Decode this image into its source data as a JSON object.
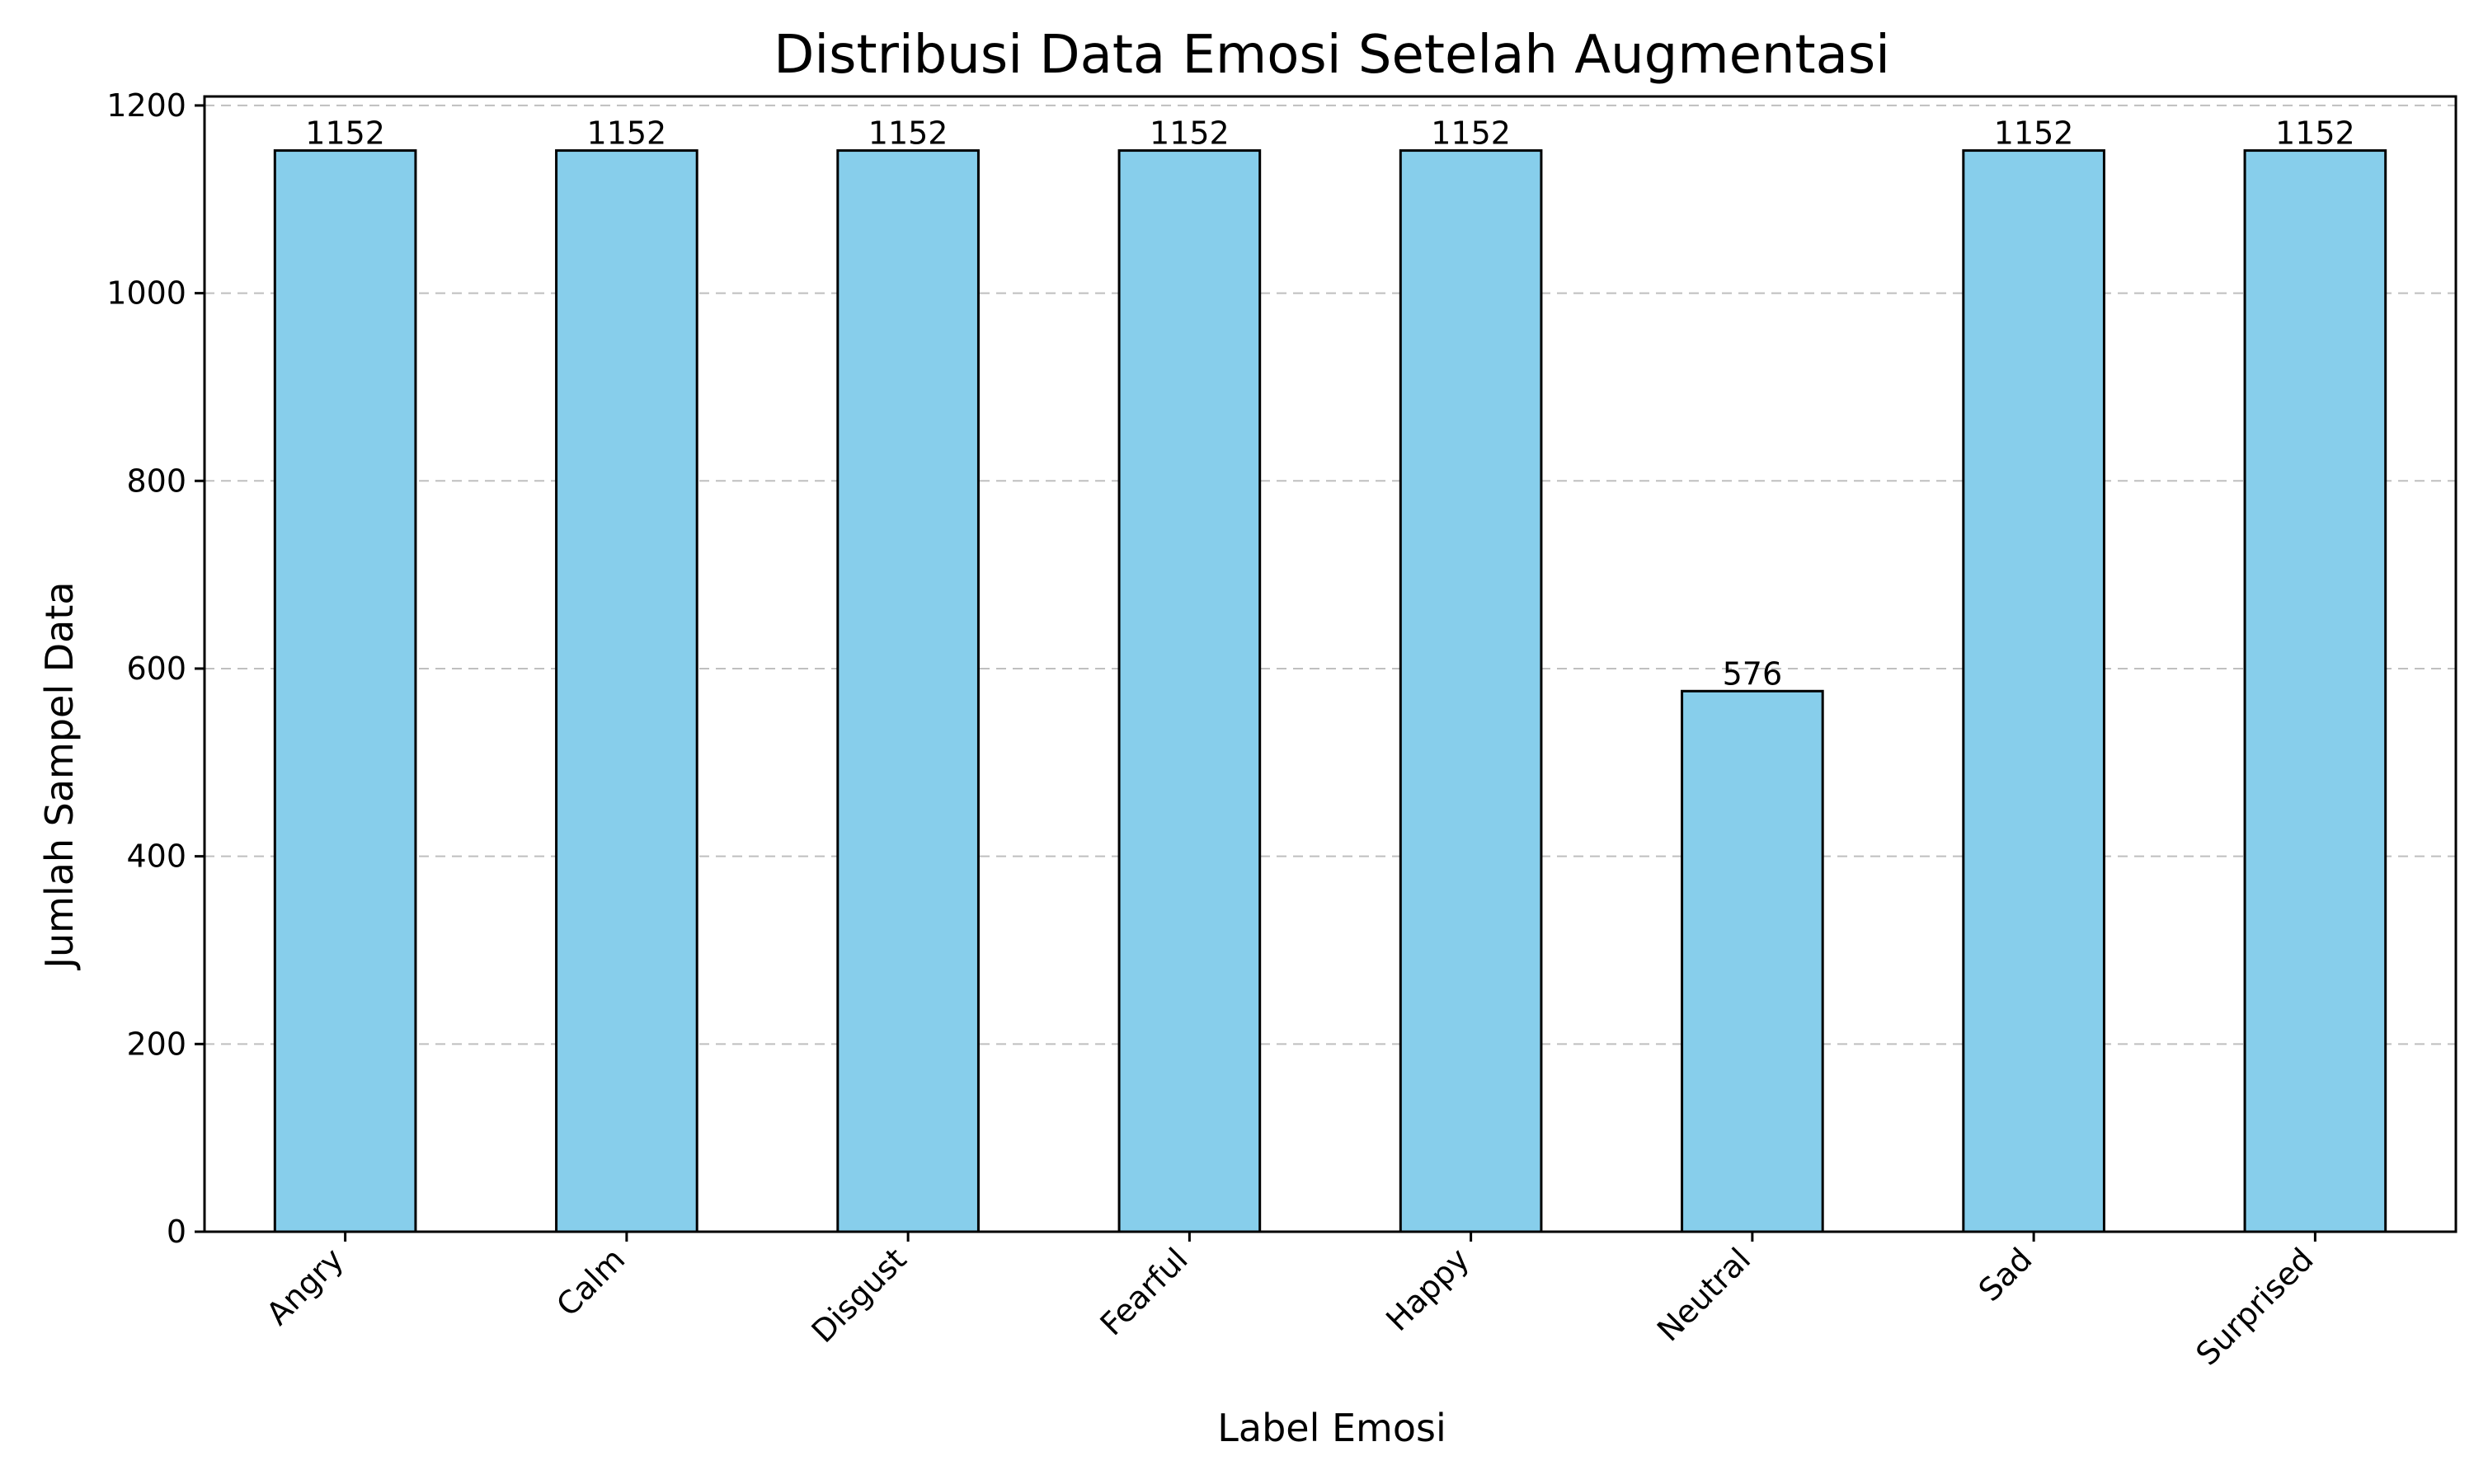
{
  "chart_data": {
    "type": "bar",
    "title": "Distribusi Data Emosi Setelah Augmentasi",
    "xlabel": "Label Emosi",
    "ylabel": "Jumlah Sampel Data",
    "categories": [
      "Angry",
      "Calm",
      "Disgust",
      "Fearful",
      "Happy",
      "Neutral",
      "Sad",
      "Surprised"
    ],
    "values": [
      1152,
      1152,
      1152,
      1152,
      1152,
      576,
      1152,
      1152
    ],
    "data_labels": [
      "1152",
      "1152",
      "1152",
      "1152",
      "1152",
      "576",
      "1152",
      "1152"
    ],
    "yticks": [
      0,
      200,
      400,
      600,
      800,
      1000,
      1200
    ],
    "ytick_labels": [
      "0",
      "200",
      "400",
      "600",
      "800",
      "1000",
      "1200"
    ],
    "ylim": [
      0,
      1209.6
    ],
    "grid": "y-dashed",
    "legend": "none",
    "colors": {
      "bar_fill": "#87CEEB",
      "bar_edge": "#000000",
      "grid": "#bfbfbf",
      "axis": "#000000"
    }
  }
}
